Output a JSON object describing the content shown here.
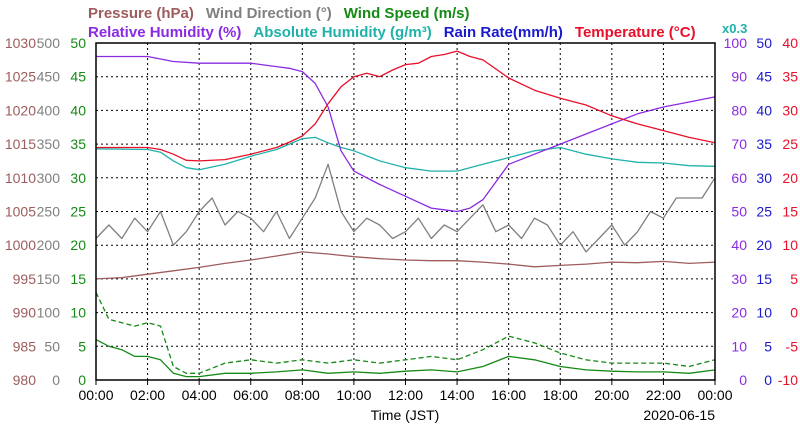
{
  "chart_data": {
    "type": "line",
    "title_row1": [
      {
        "text": "Pressure (hPa)",
        "color": "#9e5c5c"
      },
      {
        "text": "Wind Direction (°)",
        "color": "#808080"
      },
      {
        "text": "Wind Speed (m/s)",
        "color": "#158a15"
      }
    ],
    "title_row2": [
      {
        "text": "Relative Humidity (%)",
        "color": "#8a2be2"
      },
      {
        "text": "Absolute Humidity (g/m³)",
        "color": "#20b2aa"
      },
      {
        "text": "Rain Rate(mm/h)",
        "color": "#1a1acc"
      },
      {
        "text": "Temperature (°C)",
        "color": "#e8102a"
      }
    ],
    "scale_note": {
      "text": "x0.3",
      "color": "#20b2aa"
    },
    "xlabel": "Time (JST)",
    "date": "2020-06-15",
    "x_ticks": [
      "00:00",
      "02:00",
      "04:00",
      "06:00",
      "08:00",
      "10:00",
      "12:00",
      "14:00",
      "16:00",
      "18:00",
      "20:00",
      "22:00",
      "00:00"
    ],
    "grid": true,
    "axes": {
      "pressure": {
        "color": "#9e5c5c",
        "min": 980,
        "max": 1030,
        "ticks": [
          "1030",
          "1025",
          "1020",
          "1015",
          "1010",
          "1005",
          "1000",
          "995",
          "990",
          "985",
          "980"
        ]
      },
      "wind_dir": {
        "color": "#808080",
        "min": 0,
        "max": 500,
        "ticks": [
          "500",
          "450",
          "400",
          "350",
          "300",
          "250",
          "200",
          "150",
          "100",
          "50",
          "0"
        ]
      },
      "wind_spd": {
        "color": "#158a15",
        "min": 0,
        "max": 50,
        "ticks": [
          "50",
          "45",
          "40",
          "35",
          "30",
          "25",
          "20",
          "15",
          "10",
          "5",
          "0"
        ]
      },
      "rh": {
        "color": "#8a2be2",
        "min": 0,
        "max": 100,
        "ticks": [
          "100",
          "90",
          "80",
          "70",
          "60",
          "50",
          "40",
          "30",
          "20",
          "10",
          "0"
        ]
      },
      "rain": {
        "color": "#1a1acc",
        "min": 0,
        "max": 50,
        "ticks": [
          "50",
          "45",
          "40",
          "35",
          "30",
          "25",
          "20",
          "15",
          "10",
          "5",
          "0"
        ]
      },
      "temp": {
        "color": "#e8102a",
        "min": -10,
        "max": 40,
        "ticks": [
          "40",
          "35",
          "30",
          "25",
          "20",
          "15",
          "10",
          "5",
          "0",
          "-5",
          "-10"
        ]
      }
    },
    "series": [
      {
        "name": "Temperature (°C)",
        "axis": "temp",
        "color": "#e8102a",
        "x": [
          0,
          2,
          2.5,
          3,
          3.5,
          4,
          5,
          6,
          7,
          7.5,
          8,
          8.5,
          9,
          9.5,
          10,
          10.5,
          11,
          11.5,
          12,
          12.5,
          13,
          13.5,
          14,
          14.5,
          15,
          16,
          17,
          18,
          19,
          20,
          21,
          22,
          23,
          24
        ],
        "y": [
          24.5,
          24.5,
          24.2,
          23.5,
          22.6,
          22.5,
          22.7,
          23.5,
          24.5,
          25.3,
          26.2,
          28,
          31,
          33.5,
          35,
          35.5,
          35,
          36,
          36.8,
          37,
          38,
          38.3,
          38.8,
          38,
          37.5,
          34.8,
          33,
          31.8,
          30.8,
          29.2,
          28,
          27,
          26,
          25.2
        ]
      },
      {
        "name": "Absolute Humidity (g/m³)",
        "axis": "temp",
        "color": "#20b2aa",
        "x": [
          0,
          2,
          2.5,
          3,
          3.5,
          4,
          5,
          6,
          7,
          7.5,
          8,
          8.5,
          9,
          9.5,
          10,
          11,
          12,
          13,
          14,
          15,
          16,
          17,
          18,
          19,
          20,
          21,
          22,
          23,
          24
        ],
        "y": [
          24.3,
          24.2,
          23.8,
          22.5,
          21.5,
          21.2,
          22,
          23.2,
          24.2,
          25,
          25.8,
          26,
          25.2,
          24.5,
          24,
          22.5,
          21.5,
          21,
          21,
          22,
          23,
          24,
          24.5,
          23.5,
          22.8,
          22.3,
          22.2,
          21.8,
          21.7
        ]
      },
      {
        "name": "Relative Humidity (%)",
        "axis": "rh",
        "color": "#8a2be2",
        "x": [
          0,
          2,
          3,
          4,
          5,
          6,
          7,
          7.5,
          8,
          8.5,
          9,
          9.5,
          10,
          11,
          12,
          13,
          13.5,
          14,
          14.5,
          15,
          16,
          17,
          18,
          19,
          20,
          21,
          22,
          23,
          24
        ],
        "y": [
          96,
          96,
          94.5,
          94,
          94,
          94,
          93,
          92.5,
          91.5,
          88,
          81,
          68,
          62,
          58,
          54.5,
          51,
          50.5,
          50,
          51,
          53.5,
          64,
          67,
          70,
          73,
          76,
          79,
          81,
          82.5,
          84
        ]
      },
      {
        "name": "Pressure (hPa)",
        "axis": "pressure",
        "color": "#9e5c5c",
        "x": [
          0,
          1,
          2,
          3,
          4,
          5,
          6,
          7,
          8,
          9,
          10,
          11,
          12,
          13,
          14,
          15,
          16,
          17,
          18,
          19,
          20,
          21,
          22,
          23,
          24
        ],
        "y": [
          995,
          995.2,
          995.7,
          996.2,
          996.7,
          997.3,
          997.8,
          998.4,
          999,
          998.7,
          998.3,
          998,
          997.8,
          997.7,
          997.7,
          997.5,
          997.2,
          996.8,
          997,
          997.2,
          997.5,
          997.4,
          997.6,
          997.3,
          997.5
        ]
      },
      {
        "name": "Wind Direction (°)",
        "axis": "wind_dir",
        "color": "#808080",
        "x": [
          0,
          0.5,
          1,
          1.5,
          2,
          2.5,
          3,
          3.5,
          4,
          4.5,
          5,
          5.5,
          6,
          6.5,
          7,
          7.5,
          8,
          8.5,
          9,
          9.5,
          10,
          10.5,
          11,
          11.5,
          12,
          12.5,
          13,
          13.5,
          14,
          14.5,
          15,
          15.5,
          16,
          16.5,
          17,
          17.5,
          18,
          18.5,
          19,
          19.5,
          20,
          20.5,
          21,
          21.5,
          22,
          22.5,
          23,
          23.5,
          24
        ],
        "y": [
          210,
          230,
          210,
          240,
          220,
          250,
          200,
          220,
          250,
          270,
          230,
          250,
          240,
          220,
          250,
          210,
          240,
          270,
          320,
          250,
          220,
          240,
          230,
          210,
          220,
          240,
          210,
          230,
          220,
          240,
          260,
          220,
          230,
          210,
          240,
          230,
          200,
          220,
          190,
          210,
          230,
          200,
          220,
          250,
          240,
          270,
          270,
          270,
          300
        ]
      },
      {
        "name": "Wind Speed avg (m/s)",
        "axis": "wind_spd",
        "color": "#158a15",
        "x": [
          0,
          0.5,
          1,
          1.5,
          2,
          2.5,
          3,
          3.5,
          4,
          5,
          6,
          7,
          8,
          9,
          10,
          11,
          12,
          13,
          14,
          15,
          16,
          17,
          18,
          19,
          20,
          21,
          22,
          23,
          24
        ],
        "y": [
          6,
          5,
          4.5,
          3.5,
          3.5,
          3,
          1,
          0.5,
          0.5,
          1,
          1,
          1.2,
          1.5,
          1,
          1.2,
          1,
          1.3,
          1.5,
          1.2,
          2,
          3.5,
          3,
          2,
          1.5,
          1.3,
          1.2,
          1.2,
          1,
          1.5
        ]
      },
      {
        "name": "Wind Speed max (m/s)",
        "axis": "wind_spd",
        "color": "#158a15",
        "dashed": true,
        "x": [
          0,
          0.5,
          1,
          1.5,
          2,
          2.5,
          3,
          3.5,
          4,
          5,
          6,
          7,
          8,
          9,
          10,
          11,
          12,
          13,
          14,
          15,
          16,
          17,
          18,
          19,
          20,
          21,
          22,
          23,
          24
        ],
        "y": [
          13,
          9,
          8.5,
          8,
          8.5,
          8,
          2,
          1,
          1,
          2.5,
          3,
          2.5,
          3,
          2.5,
          3,
          2.5,
          3,
          3.5,
          3,
          4.5,
          6.5,
          5.5,
          4,
          3,
          2.5,
          2.5,
          2.5,
          2,
          3
        ]
      }
    ]
  }
}
